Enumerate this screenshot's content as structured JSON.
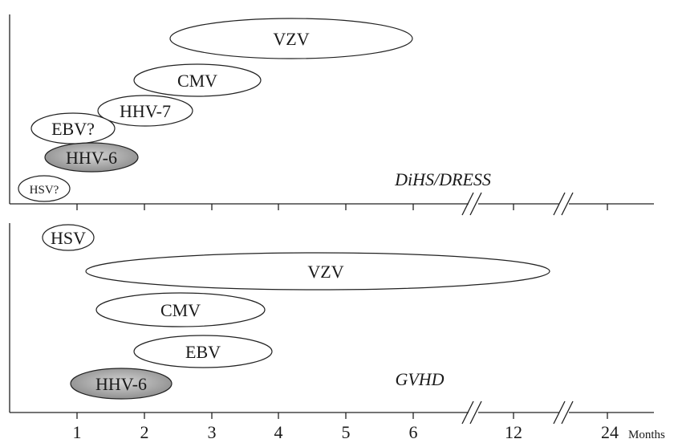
{
  "colors": {
    "line": "#222222",
    "ellipse_fill": "#ffffff",
    "highlight_fill_light": "#d4d4d4",
    "highlight_fill_dark": "#8a8a8a"
  },
  "top_panel": {
    "label_prefix": "DiHS",
    "label_sep": "/",
    "label_suffix": "DRESS",
    "viruses": [
      {
        "name": "VZV",
        "highlighted": false
      },
      {
        "name": "CMV",
        "highlighted": false
      },
      {
        "name": "HHV-7",
        "highlighted": false
      },
      {
        "name": "EBV?",
        "highlighted": false
      },
      {
        "name": "HHV-6",
        "highlighted": true
      },
      {
        "name": "HSV?",
        "highlighted": false
      }
    ]
  },
  "bottom_panel": {
    "label": "GVHD",
    "viruses": [
      {
        "name": "HSV",
        "highlighted": false
      },
      {
        "name": "VZV",
        "highlighted": false
      },
      {
        "name": "CMV",
        "highlighted": false
      },
      {
        "name": "EBV",
        "highlighted": false
      },
      {
        "name": "HHV-6",
        "highlighted": true
      }
    ]
  },
  "axis": {
    "tick_labels": [
      "1",
      "2",
      "3",
      "4",
      "5",
      "6",
      "12",
      "24"
    ],
    "unit": "Months"
  }
}
